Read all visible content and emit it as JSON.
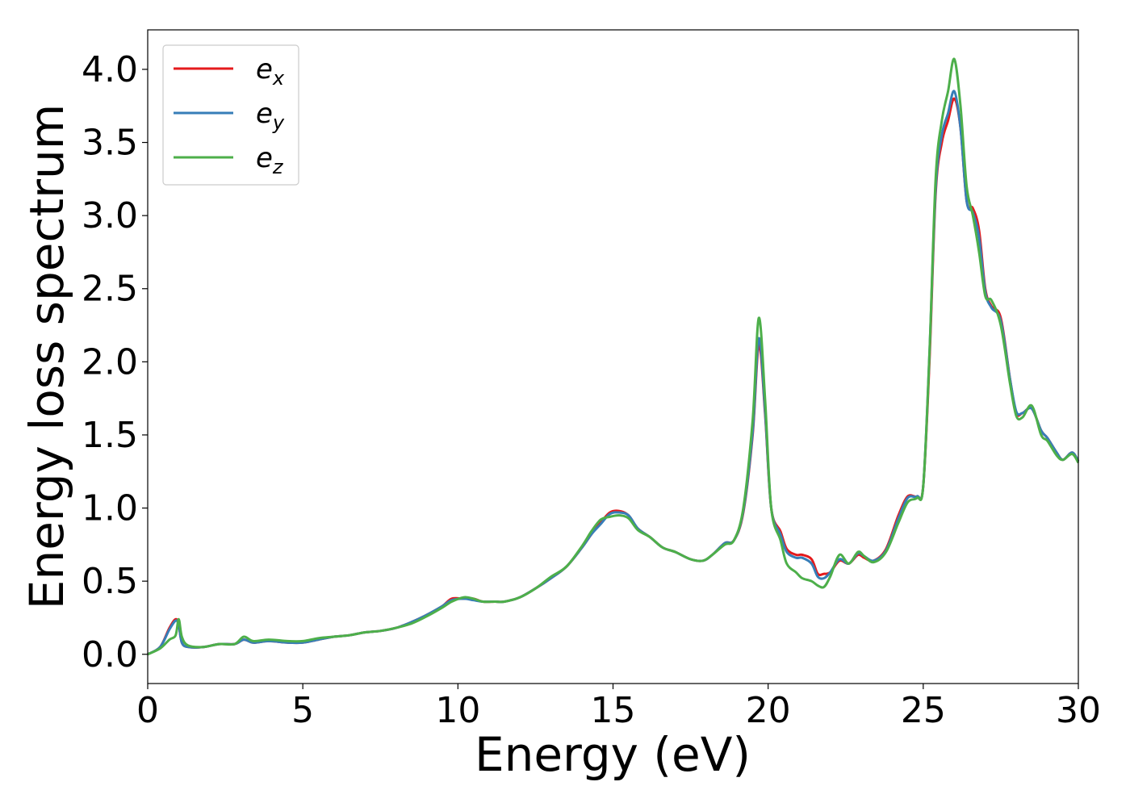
{
  "chart_data": {
    "type": "line",
    "title": "",
    "xlabel": "Energy (eV)",
    "ylabel": "Energy loss spectrum",
    "xlim": [
      0,
      30
    ],
    "ylim": [
      -0.2,
      4.27
    ],
    "xticks": [
      "0",
      "5",
      "10",
      "15",
      "20",
      "25",
      "30"
    ],
    "yticks": [
      "0.0",
      "0.5",
      "1.0",
      "1.5",
      "2.0",
      "2.5",
      "3.0",
      "3.5",
      "4.0"
    ],
    "grid": false,
    "legend_position": "upper-left",
    "colors": {
      "ex": "#e41a1c",
      "ey": "#377eb8",
      "ez": "#4daf4a"
    },
    "series": [
      {
        "name": "e_x",
        "base": "e",
        "sub": "x",
        "key": "ex",
        "x": [
          0,
          0.4,
          0.7,
          0.9,
          1.0,
          1.1,
          1.3,
          1.8,
          2.3,
          2.8,
          3.1,
          3.4,
          3.9,
          4.5,
          5.0,
          5.5,
          6.0,
          6.5,
          7.0,
          7.5,
          8.0,
          8.5,
          9.0,
          9.5,
          9.8,
          10.2,
          10.5,
          10.8,
          11.2,
          11.5,
          12.0,
          12.5,
          13.0,
          13.5,
          14.0,
          14.3,
          14.6,
          14.9,
          15.2,
          15.5,
          15.8,
          16.2,
          16.6,
          17.0,
          17.5,
          17.9,
          18.2,
          18.6,
          18.9,
          19.2,
          19.5,
          19.7,
          19.9,
          20.1,
          20.4,
          20.6,
          20.9,
          21.1,
          21.4,
          21.6,
          21.8,
          22.0,
          22.3,
          22.6,
          22.9,
          23.1,
          23.4,
          23.8,
          24.2,
          24.5,
          24.8,
          25.0,
          25.2,
          25.4,
          25.6,
          25.8,
          26.0,
          26.2,
          26.4,
          26.6,
          26.8,
          27.0,
          27.2,
          27.5,
          27.8,
          28.0,
          28.2,
          28.5,
          28.8,
          29.0,
          29.3,
          29.5,
          29.8,
          30.0
        ],
        "y": [
          0.0,
          0.05,
          0.18,
          0.24,
          0.2,
          0.08,
          0.05,
          0.05,
          0.07,
          0.07,
          0.1,
          0.08,
          0.09,
          0.08,
          0.08,
          0.1,
          0.12,
          0.13,
          0.15,
          0.16,
          0.18,
          0.22,
          0.27,
          0.33,
          0.38,
          0.38,
          0.38,
          0.36,
          0.36,
          0.36,
          0.39,
          0.45,
          0.52,
          0.6,
          0.73,
          0.82,
          0.9,
          0.97,
          0.98,
          0.95,
          0.86,
          0.8,
          0.73,
          0.7,
          0.65,
          0.64,
          0.68,
          0.76,
          0.78,
          0.97,
          1.5,
          2.12,
          1.65,
          1.0,
          0.84,
          0.72,
          0.68,
          0.68,
          0.65,
          0.55,
          0.55,
          0.56,
          0.64,
          0.62,
          0.68,
          0.66,
          0.64,
          0.72,
          0.95,
          1.08,
          1.08,
          1.15,
          2.0,
          3.15,
          3.5,
          3.65,
          3.8,
          3.6,
          3.1,
          3.05,
          2.9,
          2.5,
          2.38,
          2.3,
          1.88,
          1.65,
          1.65,
          1.68,
          1.53,
          1.48,
          1.38,
          1.33,
          1.38,
          1.32
        ]
      },
      {
        "name": "e_y",
        "base": "e",
        "sub": "y",
        "key": "ey",
        "x": [
          0,
          0.4,
          0.7,
          0.9,
          1.0,
          1.1,
          1.3,
          1.8,
          2.3,
          2.8,
          3.1,
          3.4,
          3.9,
          4.5,
          5.0,
          5.5,
          6.0,
          6.5,
          7.0,
          7.5,
          8.0,
          8.5,
          9.0,
          9.5,
          9.8,
          10.2,
          10.5,
          10.8,
          11.2,
          11.5,
          12.0,
          12.5,
          13.0,
          13.5,
          14.0,
          14.3,
          14.6,
          14.9,
          15.2,
          15.5,
          15.8,
          16.2,
          16.6,
          17.0,
          17.5,
          17.9,
          18.2,
          18.6,
          18.9,
          19.2,
          19.5,
          19.7,
          19.9,
          20.1,
          20.4,
          20.6,
          20.9,
          21.1,
          21.4,
          21.6,
          21.8,
          22.0,
          22.3,
          22.6,
          22.9,
          23.1,
          23.4,
          23.8,
          24.2,
          24.5,
          24.8,
          25.0,
          25.2,
          25.4,
          25.6,
          25.8,
          26.0,
          26.2,
          26.4,
          26.6,
          26.8,
          27.0,
          27.2,
          27.5,
          27.8,
          28.0,
          28.2,
          28.5,
          28.8,
          29.0,
          29.3,
          29.5,
          29.8,
          30.0
        ],
        "y": [
          0.0,
          0.05,
          0.17,
          0.23,
          0.2,
          0.08,
          0.05,
          0.05,
          0.07,
          0.07,
          0.1,
          0.08,
          0.09,
          0.08,
          0.08,
          0.1,
          0.12,
          0.13,
          0.15,
          0.16,
          0.18,
          0.22,
          0.27,
          0.33,
          0.37,
          0.38,
          0.37,
          0.36,
          0.36,
          0.36,
          0.39,
          0.45,
          0.52,
          0.6,
          0.73,
          0.82,
          0.89,
          0.96,
          0.97,
          0.95,
          0.86,
          0.8,
          0.73,
          0.7,
          0.65,
          0.64,
          0.68,
          0.76,
          0.78,
          0.98,
          1.52,
          2.16,
          1.67,
          1.0,
          0.82,
          0.7,
          0.66,
          0.66,
          0.62,
          0.53,
          0.52,
          0.56,
          0.65,
          0.62,
          0.69,
          0.67,
          0.64,
          0.71,
          0.93,
          1.07,
          1.08,
          1.15,
          2.05,
          3.18,
          3.55,
          3.7,
          3.85,
          3.6,
          3.1,
          3.02,
          2.85,
          2.48,
          2.37,
          2.28,
          1.88,
          1.66,
          1.65,
          1.68,
          1.53,
          1.48,
          1.38,
          1.33,
          1.38,
          1.32
        ]
      },
      {
        "name": "e_z",
        "base": "e",
        "sub": "z",
        "key": "ez",
        "x": [
          0,
          0.4,
          0.7,
          0.9,
          1.0,
          1.1,
          1.3,
          1.8,
          2.3,
          2.8,
          3.1,
          3.4,
          3.9,
          4.5,
          5.0,
          5.5,
          6.0,
          6.5,
          7.0,
          7.5,
          8.0,
          8.5,
          9.0,
          9.5,
          9.8,
          10.2,
          10.5,
          10.8,
          11.2,
          11.5,
          12.0,
          12.5,
          13.0,
          13.5,
          14.0,
          14.3,
          14.6,
          14.9,
          15.2,
          15.5,
          15.8,
          16.2,
          16.6,
          17.0,
          17.5,
          17.9,
          18.2,
          18.6,
          18.9,
          19.2,
          19.5,
          19.7,
          19.9,
          20.1,
          20.4,
          20.6,
          20.9,
          21.1,
          21.4,
          21.6,
          21.8,
          22.0,
          22.3,
          22.6,
          22.9,
          23.1,
          23.4,
          23.8,
          24.2,
          24.5,
          24.8,
          25.0,
          25.2,
          25.4,
          25.6,
          25.8,
          26.0,
          26.2,
          26.4,
          26.6,
          26.8,
          27.0,
          27.2,
          27.5,
          27.8,
          28.0,
          28.2,
          28.5,
          28.8,
          29.0,
          29.3,
          29.5,
          29.8,
          30.0
        ],
        "y": [
          0.0,
          0.04,
          0.1,
          0.13,
          0.24,
          0.12,
          0.06,
          0.05,
          0.07,
          0.07,
          0.12,
          0.09,
          0.1,
          0.09,
          0.09,
          0.11,
          0.12,
          0.13,
          0.15,
          0.16,
          0.18,
          0.21,
          0.26,
          0.32,
          0.36,
          0.39,
          0.38,
          0.36,
          0.36,
          0.36,
          0.39,
          0.45,
          0.53,
          0.6,
          0.74,
          0.84,
          0.92,
          0.94,
          0.95,
          0.93,
          0.85,
          0.8,
          0.73,
          0.7,
          0.65,
          0.64,
          0.68,
          0.75,
          0.78,
          1.0,
          1.6,
          2.3,
          1.75,
          1.0,
          0.78,
          0.62,
          0.56,
          0.52,
          0.5,
          0.47,
          0.46,
          0.53,
          0.68,
          0.62,
          0.7,
          0.67,
          0.63,
          0.7,
          0.9,
          1.04,
          1.07,
          1.15,
          2.05,
          3.25,
          3.65,
          3.85,
          4.07,
          3.75,
          3.2,
          3.0,
          2.75,
          2.45,
          2.42,
          2.25,
          1.85,
          1.63,
          1.62,
          1.7,
          1.5,
          1.46,
          1.36,
          1.33,
          1.37,
          1.31
        ]
      }
    ]
  }
}
